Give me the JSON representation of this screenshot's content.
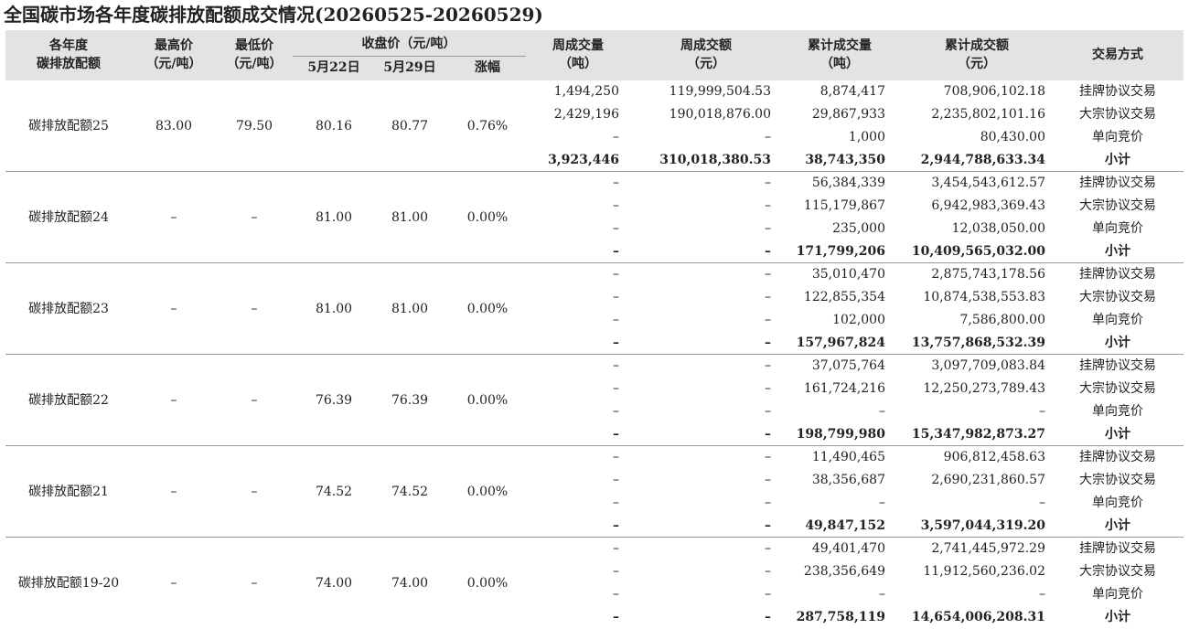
{
  "header": {
    "title": "全国碳市场各年度碳排放配额成交情况(20260525-20260529)",
    "columns": [
      [
        "各年度",
        "碳排放配额"
      ],
      [
        "最高价",
        "（元/吨）"
      ],
      [
        "最低价",
        "（元/吨）"
      ],
      [
        "收盘价（元/吨）"
      ],
      [
        "周成交量",
        "（吨）"
      ],
      [
        "周成交额",
        "（元）"
      ],
      [
        "累计成交量",
        "（吨）"
      ],
      [
        "累计成交额",
        "（元）"
      ],
      [
        "交易方式"
      ]
    ],
    "subcolumns": [
      "5月22日",
      "5月29日",
      "涨幅"
    ]
  },
  "groups": [
    {
      "name": "碳排放配额25",
      "high": "83.00",
      "low": "79.50",
      "close1": "80.16",
      "close2": "80.77",
      "change": "0.76%",
      "rows": [
        [
          "1,494,250",
          "119,999,504.53",
          "8,874,417",
          "708,906,102.18",
          "挂牌协议交易"
        ],
        [
          "2,429,196",
          "190,018,876.00",
          "29,867,933",
          "2,235,802,101.16",
          "大宗协议交易"
        ],
        [
          "–",
          "–",
          "1,000",
          "80,430.00",
          "单向竞价"
        ],
        [
          "3,923,446",
          "310,018,380.53",
          "38,743,350",
          "2,944,788,633.34",
          "小计"
        ]
      ]
    },
    {
      "name": "碳排放配额24",
      "high": "–",
      "low": "–",
      "close1": "81.00",
      "close2": "81.00",
      "change": "0.00%",
      "rows": [
        [
          "–",
          "–",
          "56,384,339",
          "3,454,543,612.57",
          "挂牌协议交易"
        ],
        [
          "–",
          "–",
          "115,179,867",
          "6,942,983,369.43",
          "大宗协议交易"
        ],
        [
          "–",
          "–",
          "235,000",
          "12,038,050.00",
          "单向竞价"
        ],
        [
          "–",
          "–",
          "171,799,206",
          "10,409,565,032.00",
          "小计"
        ]
      ]
    },
    {
      "name": "碳排放配额23",
      "high": "–",
      "low": "–",
      "close1": "81.00",
      "close2": "81.00",
      "change": "0.00%",
      "rows": [
        [
          "–",
          "–",
          "35,010,470",
          "2,875,743,178.56",
          "挂牌协议交易"
        ],
        [
          "–",
          "–",
          "122,855,354",
          "10,874,538,553.83",
          "大宗协议交易"
        ],
        [
          "–",
          "–",
          "102,000",
          "7,586,800.00",
          "单向竞价"
        ],
        [
          "–",
          "–",
          "157,967,824",
          "13,757,868,532.39",
          "小计"
        ]
      ]
    },
    {
      "name": "碳排放配额22",
      "high": "–",
      "low": "–",
      "close1": "76.39",
      "close2": "76.39",
      "change": "0.00%",
      "rows": [
        [
          "–",
          "–",
          "37,075,764",
          "3,097,709,083.84",
          "挂牌协议交易"
        ],
        [
          "–",
          "–",
          "161,724,216",
          "12,250,273,789.43",
          "大宗协议交易"
        ],
        [
          "–",
          "–",
          "–",
          "–",
          "单向竞价"
        ],
        [
          "–",
          "–",
          "198,799,980",
          "15,347,982,873.27",
          "小计"
        ]
      ]
    },
    {
      "name": "碳排放配额21",
      "high": "–",
      "low": "–",
      "close1": "74.52",
      "close2": "74.52",
      "change": "0.00%",
      "rows": [
        [
          "–",
          "–",
          "11,490,465",
          "906,812,458.63",
          "挂牌协议交易"
        ],
        [
          "–",
          "–",
          "38,356,687",
          "2,690,231,860.57",
          "大宗协议交易"
        ],
        [
          "–",
          "–",
          "–",
          "–",
          "单向竞价"
        ],
        [
          "–",
          "–",
          "49,847,152",
          "3,597,044,319.20",
          "小计"
        ]
      ]
    },
    {
      "name": "碳排放配额19-20",
      "high": "–",
      "low": "–",
      "close1": "74.00",
      "close2": "74.00",
      "change": "0.00%",
      "rows": [
        [
          "–",
          "–",
          "49,401,470",
          "2,741,445,972.29",
          "挂牌协议交易"
        ],
        [
          "–",
          "–",
          "238,356,649",
          "11,912,560,236.02",
          "大宗协议交易"
        ],
        [
          "–",
          "–",
          "–",
          "–",
          "单向竞价"
        ],
        [
          "–",
          "–",
          "287,758,119",
          "14,654,006,208.31",
          "小计"
        ]
      ]
    }
  ]
}
